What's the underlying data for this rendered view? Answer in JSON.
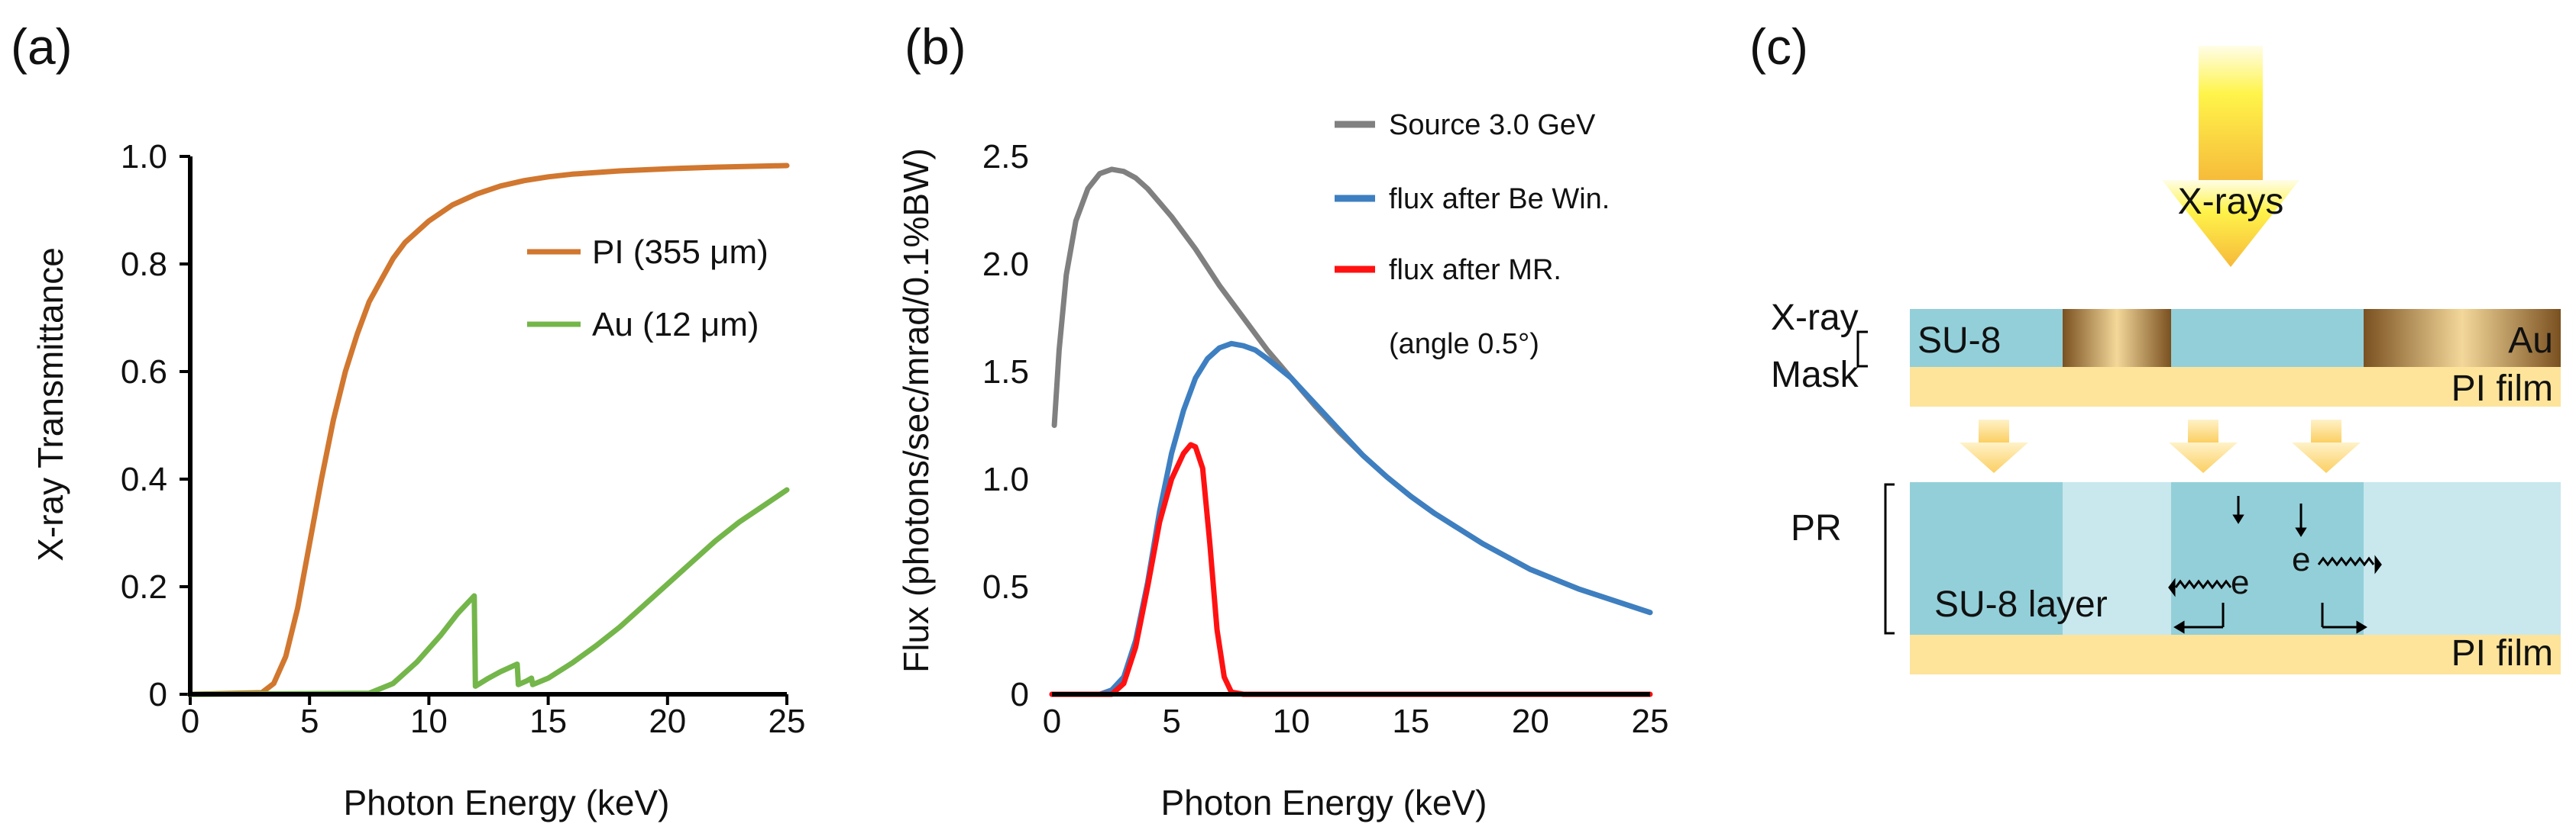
{
  "panels": {
    "a": "(a)",
    "b": "(b)",
    "c": "(c)"
  },
  "colors": {
    "pi": "#d1772f",
    "au": "#74b64a",
    "source": "#808080",
    "be_window": "#3e7fc1",
    "mirror": "#ff1111",
    "su8": "#93cfd9",
    "su8_exposed": "#c8e8ee",
    "pi_film": "#fde49a",
    "gold": "#a07030",
    "arrow": "#fcd267"
  },
  "chart_data": [
    {
      "id": "a",
      "type": "line",
      "xlabel": "Photon Energy (keV)",
      "ylabel": "X-ray Transmittance",
      "xlim": [
        0,
        25
      ],
      "ylim": [
        0,
        1.0
      ],
      "xticks": [
        0,
        5,
        10,
        15,
        20,
        25
      ],
      "yticks": [
        0,
        0.2,
        0.4,
        0.6,
        0.8,
        1.0
      ],
      "ytick_labels": [
        "0",
        "0.2",
        "0.4",
        "0.6",
        "0.8",
        "1.0"
      ],
      "legend_position": "center-right",
      "series": [
        {
          "name": "PI (355 µm)",
          "legend": "PI (355 μm)",
          "color": "#d1772f",
          "x": [
            0,
            3,
            3.5,
            4,
            4.5,
            5,
            5.5,
            6,
            6.5,
            7,
            7.5,
            8,
            8.5,
            9,
            10,
            11,
            12,
            13,
            14,
            15,
            16,
            18,
            20,
            22,
            25
          ],
          "y": [
            0,
            0.003,
            0.02,
            0.07,
            0.16,
            0.28,
            0.4,
            0.51,
            0.6,
            0.67,
            0.73,
            0.77,
            0.81,
            0.84,
            0.88,
            0.91,
            0.93,
            0.945,
            0.955,
            0.962,
            0.967,
            0.973,
            0.977,
            0.98,
            0.983
          ]
        },
        {
          "name": "Au (12 µm)",
          "legend": "Au (12 μm)",
          "color": "#74b64a",
          "x": [
            0,
            7.5,
            8.5,
            9.5,
            10.5,
            11.2,
            11.9,
            11.95,
            12.5,
            13.0,
            13.7,
            13.75,
            14.1,
            14.3,
            14.35,
            15,
            16,
            17,
            18,
            19,
            20,
            21,
            22,
            23,
            24,
            25
          ],
          "y": [
            0,
            0.002,
            0.02,
            0.06,
            0.11,
            0.15,
            0.183,
            0.015,
            0.03,
            0.042,
            0.056,
            0.018,
            0.025,
            0.03,
            0.018,
            0.03,
            0.058,
            0.09,
            0.125,
            0.165,
            0.205,
            0.245,
            0.285,
            0.32,
            0.35,
            0.38
          ]
        }
      ]
    },
    {
      "id": "b",
      "type": "line",
      "xlabel": "Photon Energy (keV)",
      "ylabel": "Flux (photons/sec/mrad/0.1%BW)",
      "xlim": [
        0,
        25
      ],
      "ylim": [
        0,
        2.5
      ],
      "xticks": [
        0,
        5,
        10,
        15,
        20,
        25
      ],
      "yticks": [
        0,
        0.5,
        1.0,
        1.5,
        2.0,
        2.5
      ],
      "ytick_labels": [
        "0",
        "0.5",
        "1.0",
        "1.5",
        "2.0",
        "2.5"
      ],
      "legend_position": "top-right",
      "legend_note": "(angle 0.5°)",
      "series": [
        {
          "name": "Source 3.0 GeV",
          "color": "#808080",
          "x": [
            0.1,
            0.3,
            0.6,
            1.0,
            1.5,
            2.0,
            2.5,
            3.0,
            3.5,
            4.0,
            5.0,
            6.0,
            7.0,
            8.0,
            9.0,
            10.0,
            11.0,
            12.0,
            13.0,
            14.0,
            15.0,
            16.0,
            18.0,
            20.0,
            22.0,
            25.0
          ],
          "y": [
            1.25,
            1.6,
            1.95,
            2.2,
            2.35,
            2.42,
            2.44,
            2.43,
            2.4,
            2.35,
            2.22,
            2.07,
            1.9,
            1.75,
            1.6,
            1.47,
            1.34,
            1.22,
            1.11,
            1.01,
            0.92,
            0.84,
            0.7,
            0.58,
            0.49,
            0.38
          ]
        },
        {
          "name": "flux after Be Win.",
          "color": "#3e7fc1",
          "x": [
            0,
            2.0,
            2.5,
            3.0,
            3.5,
            4.0,
            4.5,
            5.0,
            5.5,
            6.0,
            6.5,
            7.0,
            7.5,
            8.0,
            8.5,
            9.0,
            10.0,
            11.0,
            12.0,
            13.0,
            14.0,
            15.0,
            16.0,
            18.0,
            20.0,
            22.0,
            25.0
          ],
          "y": [
            0,
            0,
            0.02,
            0.08,
            0.25,
            0.52,
            0.85,
            1.12,
            1.32,
            1.47,
            1.56,
            1.61,
            1.63,
            1.62,
            1.6,
            1.56,
            1.47,
            1.35,
            1.23,
            1.11,
            1.01,
            0.92,
            0.84,
            0.7,
            0.58,
            0.49,
            0.38
          ]
        },
        {
          "name": "flux after MR.",
          "color": "#ff1111",
          "x": [
            0,
            2.5,
            3.0,
            3.5,
            4.0,
            4.5,
            5.0,
            5.5,
            5.8,
            6.0,
            6.3,
            6.6,
            6.9,
            7.2,
            7.5,
            8.0,
            25.0
          ],
          "y": [
            0,
            0,
            0.05,
            0.22,
            0.5,
            0.8,
            1.0,
            1.12,
            1.16,
            1.15,
            1.05,
            0.7,
            0.3,
            0.08,
            0.01,
            0,
            0
          ]
        }
      ]
    }
  ],
  "diagram": {
    "xrays_label": "X-rays",
    "mask_label_line1": "X-ray",
    "mask_label_line2": "Mask",
    "su8_label": "SU-8",
    "au_label": "Au",
    "pi_film_label": "PI film",
    "pr_label": "PR",
    "su8_layer_label": "SU-8 layer",
    "electron_label": "e",
    "pi_film_bottom_label": "PI film"
  }
}
